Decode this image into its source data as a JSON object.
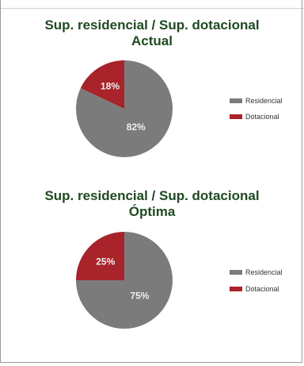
{
  "colors": {
    "residencial": "#7b7b7b",
    "dotacional": "#a8232a",
    "title": "#1f4a22",
    "label": "#f0f0f0"
  },
  "chart_data": [
    {
      "type": "pie",
      "title_line1": "Sup. residencial / Sup. dotacional",
      "title_line2": "Actual",
      "categories": [
        "Residencial",
        "Dotacional"
      ],
      "values": [
        82,
        18
      ],
      "labels": [
        "82%",
        "18%"
      ],
      "legend": [
        "Residencial",
        "Dotacional"
      ],
      "legend_position": "right"
    },
    {
      "type": "pie",
      "title_line1": "Sup. residencial / Sup. dotacional",
      "title_line2": "Óptima",
      "categories": [
        "Residencial",
        "Dotacional"
      ],
      "values": [
        75,
        25
      ],
      "labels": [
        "75%",
        "25%"
      ],
      "legend": [
        "Residencial",
        "Dotacional"
      ],
      "legend_position": "right"
    }
  ]
}
